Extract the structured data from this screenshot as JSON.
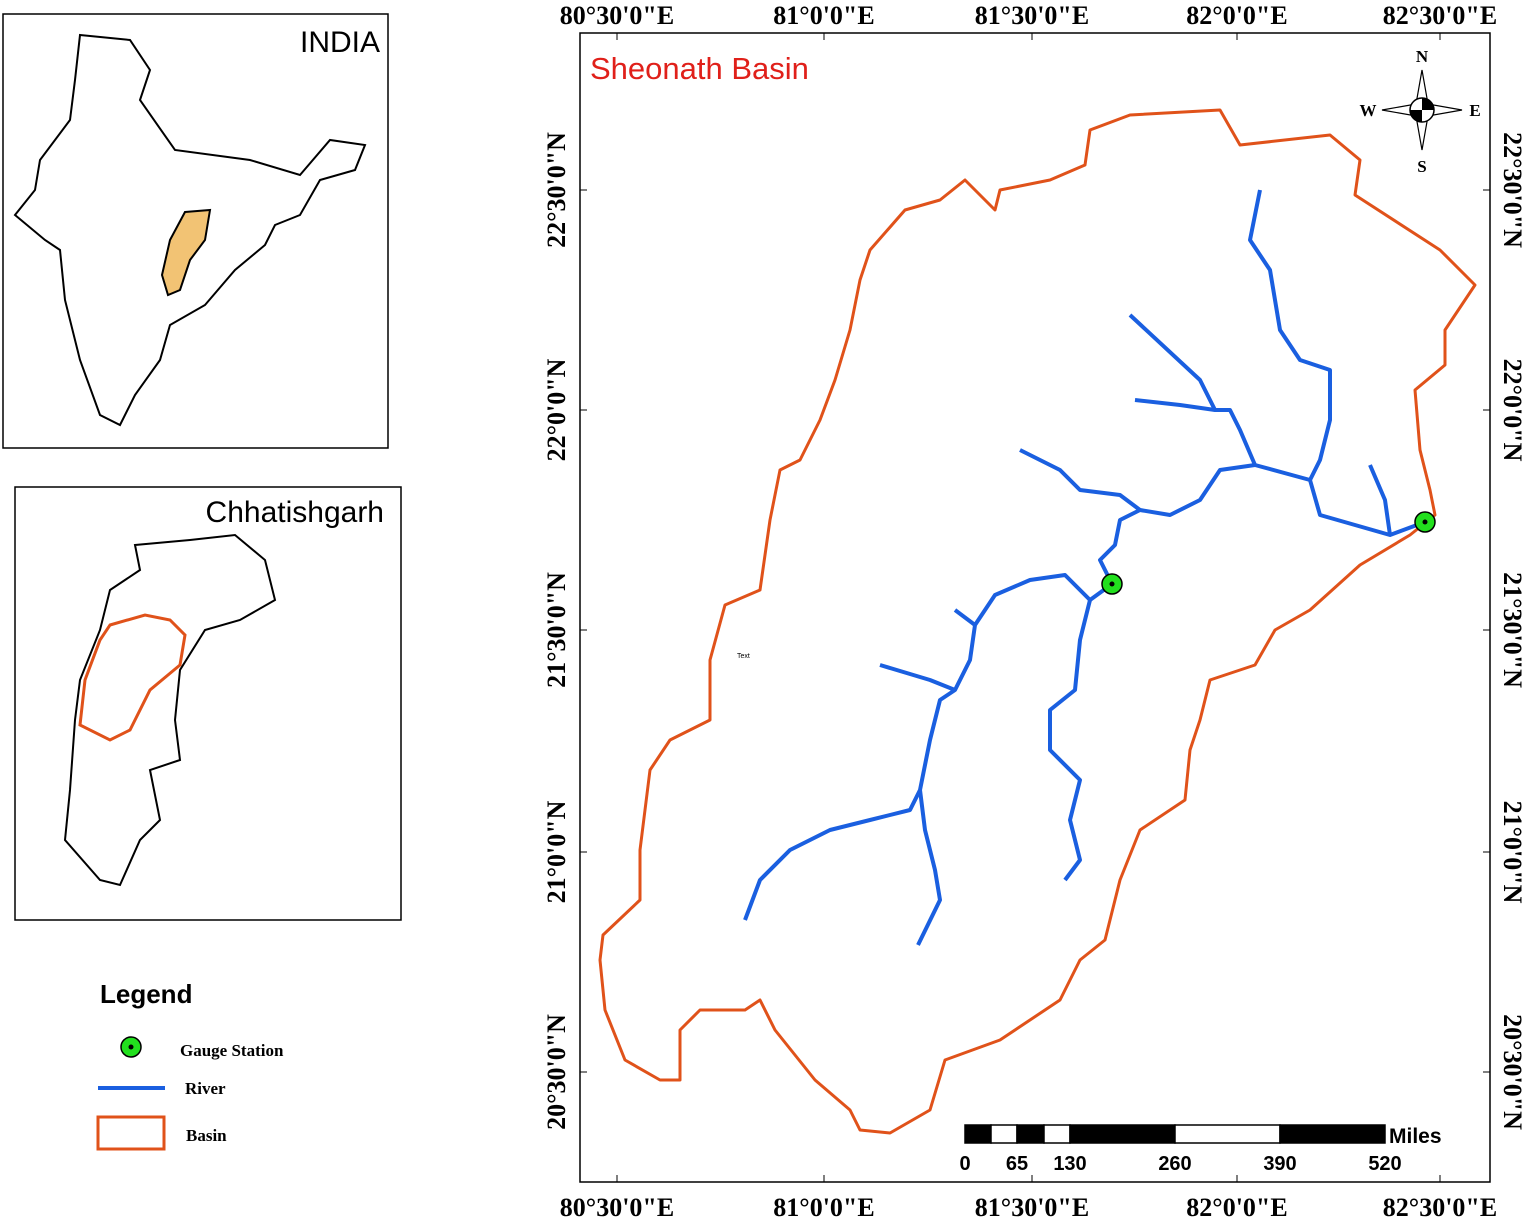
{
  "insets": {
    "india": {
      "title": "INDIA"
    },
    "state": {
      "title": "Chhatishgarh"
    }
  },
  "legend": {
    "title": "Legend",
    "items": [
      "Gauge Station",
      "River",
      "Basin"
    ]
  },
  "map": {
    "title": "Sheonath Basin",
    "note": "Text",
    "compass": {
      "n": "N",
      "s": "S",
      "e": "E",
      "w": "W"
    },
    "grid": {
      "top": [
        "80°30'0\"E",
        "81°0'0\"E",
        "81°30'0\"E",
        "82°0'0\"E",
        "82°30'0\"E"
      ],
      "bottom": [
        "80°30'0\"E",
        "81°0'0\"E",
        "81°30'0\"E",
        "82°0'0\"E",
        "82°30'0\"E"
      ],
      "left": [
        "22°30'0\"N",
        "22°0'0\"N",
        "21°30'0\"N",
        "21°0'0\"N",
        "20°30'0\"N"
      ],
      "right": [
        "22°30'0\"N",
        "22°0'0\"N",
        "21°30'0\"N",
        "21°0'0\"N",
        "20°30'0\"N"
      ]
    },
    "scale": {
      "labels": [
        0,
        65,
        130,
        260,
        390,
        520
      ],
      "unit": "Miles"
    }
  }
}
